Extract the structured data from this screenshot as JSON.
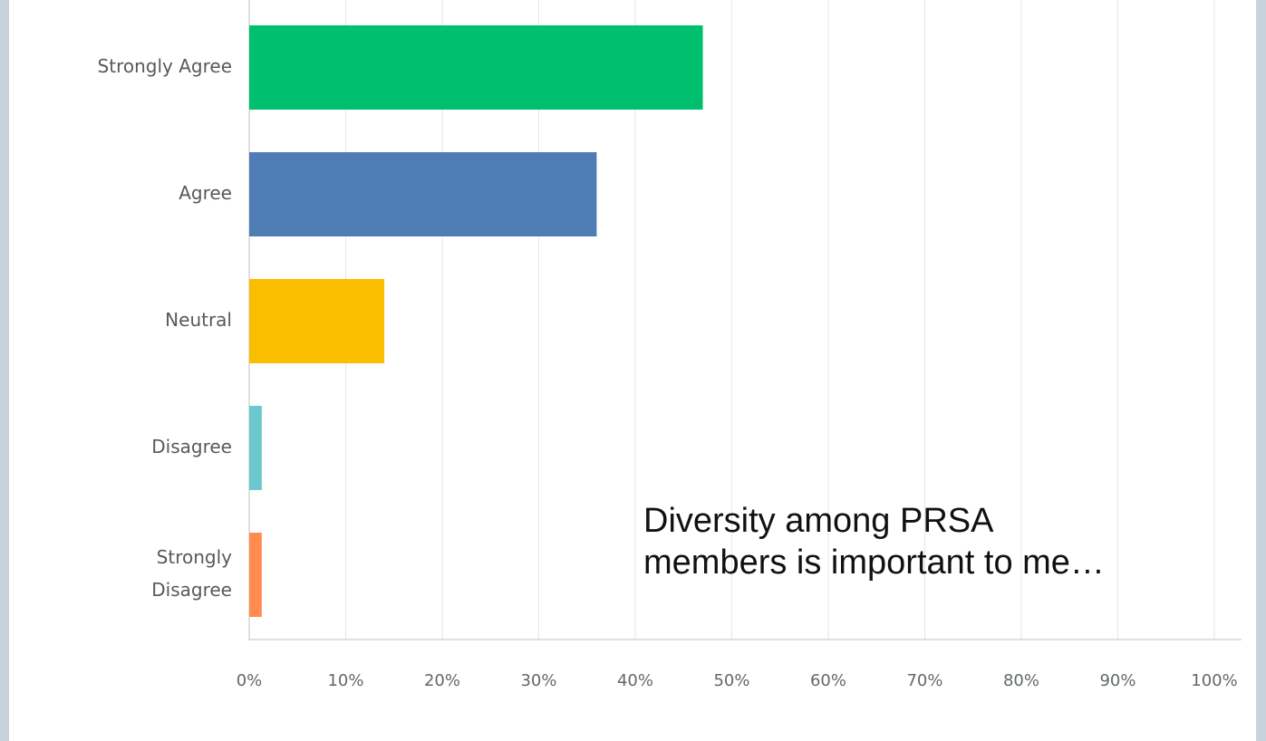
{
  "chart_data": {
    "type": "bar",
    "orientation": "horizontal",
    "categories": [
      "Strongly Agree",
      "Agree",
      "Neutral",
      "Disagree",
      "Strongly Disagree"
    ],
    "category_lines": [
      [
        "Strongly Agree"
      ],
      [
        "Agree"
      ],
      [
        "Neutral"
      ],
      [
        "Disagree"
      ],
      [
        "Strongly",
        "Disagree"
      ]
    ],
    "values": [
      47,
      36,
      14,
      1.3,
      1.3
    ],
    "colors": [
      "#00bf6f",
      "#507cb6",
      "#f9be00",
      "#6bc8cd",
      "#ff8b4f"
    ],
    "xlim": [
      0,
      100
    ],
    "xticks": [
      0,
      10,
      20,
      30,
      40,
      50,
      60,
      70,
      80,
      90,
      100
    ],
    "xtick_labels": [
      "0%",
      "10%",
      "20%",
      "30%",
      "40%",
      "50%",
      "60%",
      "70%",
      "80%",
      "90%",
      "100%"
    ],
    "grid": true,
    "annotation_lines": [
      "Diversity among PRSA",
      "members is important to me…"
    ]
  }
}
